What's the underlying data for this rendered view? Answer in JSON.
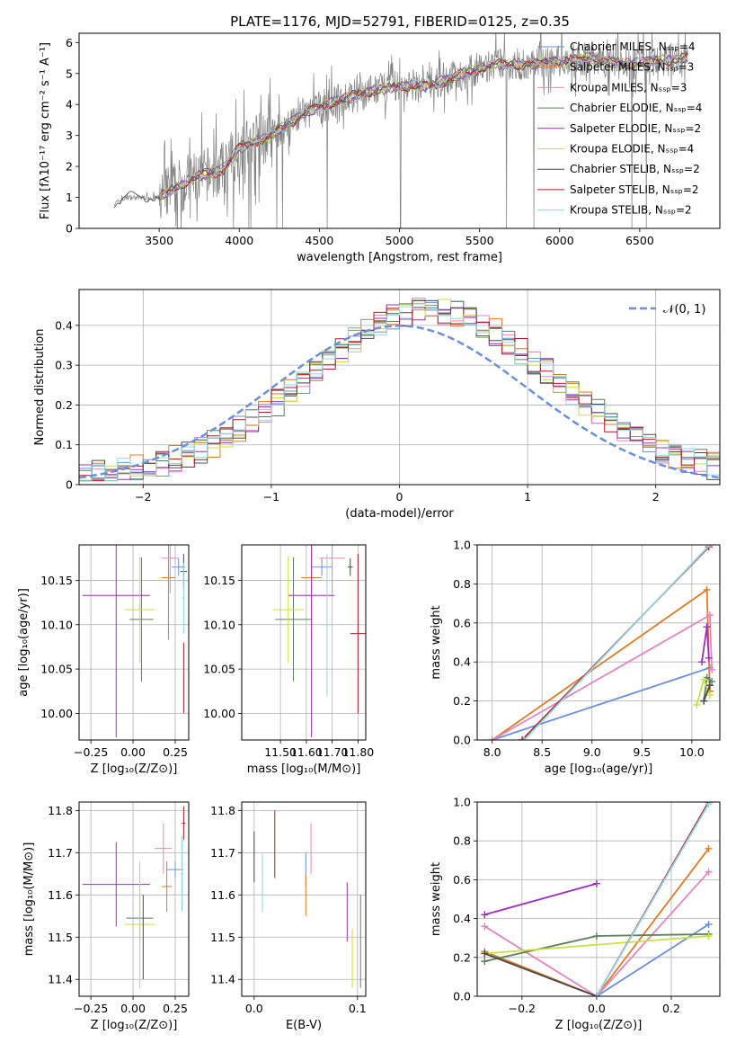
{
  "figure_title": "PLATE=1176, MJD=52791, FIBERID=0125, z=0.35",
  "palette": [
    "#6a8fdb",
    "#e07b24",
    "#e784c0",
    "#5c7f60",
    "#9b2fb5",
    "#c8e040",
    "#4b4b4b",
    "#b01c24",
    "#8fd6e0"
  ],
  "chart_data": [
    {
      "id": "spectrum",
      "type": "line",
      "xlabel": "wavelength [Angstrom, rest frame]",
      "ylabel": "Flux [fλ10⁻¹⁷ erg cm⁻² s⁻¹ A⁻¹]",
      "xlim": [
        3000,
        7000
      ],
      "ylim": [
        0,
        6.3
      ],
      "xticks": [
        3500,
        4000,
        4500,
        5000,
        5500,
        6000,
        6500
      ],
      "yticks": [
        0,
        1,
        2,
        3,
        4,
        5,
        6
      ],
      "legend_position": "top-right",
      "data_line": {
        "color": "#808080",
        "x": [
          3220,
          3300,
          3500,
          3700,
          3900,
          4000,
          4200,
          4400,
          4600,
          4800,
          5000,
          5200,
          5400,
          5600,
          5800,
          6000,
          6200,
          6400,
          6600,
          6800
        ],
        "y": [
          0.8,
          1.0,
          1.0,
          1.6,
          1.9,
          2.6,
          3.0,
          3.7,
          4.1,
          4.4,
          4.6,
          4.6,
          5.0,
          5.3,
          5.3,
          5.4,
          5.5,
          5.3,
          5.4,
          5.5
        ]
      },
      "series": [
        {
          "name": "Chabrier MILES, Nₛₛₚ=4"
        },
        {
          "name": "Salpeter MILES, Nₛₛₚ=3"
        },
        {
          "name": "Kroupa MILES, Nₛₛₚ=3"
        },
        {
          "name": "Chabrier ELODIE, Nₛₛₚ=4"
        },
        {
          "name": "Salpeter ELODIE, Nₛₛₚ=2"
        },
        {
          "name": "Kroupa ELODIE, Nₛₛₚ=4"
        },
        {
          "name": "Chabrier STELIB, Nₛₛₚ=2"
        },
        {
          "name": "Salpeter STELIB, Nₛₛₚ=2"
        },
        {
          "name": "Kroupa STELIB, Nₛₛₚ=2"
        }
      ]
    },
    {
      "id": "residuals",
      "type": "histogram",
      "xlabel": "(data-model)/error",
      "ylabel": "Normed distribution",
      "xlim": [
        -2.5,
        2.5
      ],
      "ylim": [
        0,
        0.49
      ],
      "xticks": [
        -2,
        -1,
        0,
        1,
        2
      ],
      "yticks": [
        0.0,
        0.1,
        0.2,
        0.3,
        0.4
      ],
      "grid": true,
      "legend_position": "top-right",
      "reference_label": "𝒩(0, 1)",
      "reference_mean": 0,
      "reference_sd": 1
    },
    {
      "id": "age_vs_Z",
      "type": "errorbar",
      "xlabel": "Z [log₁₀(Z/Z⊙)]",
      "ylabel": "age  [log₁₀(age/yr)]",
      "xlim": [
        -0.32,
        0.33
      ],
      "ylim": [
        9.97,
        10.19
      ],
      "xticks": [
        "-0.25",
        "0.00",
        "0.25"
      ],
      "yticks": [
        "10.00",
        "10.05",
        "10.10",
        "10.15"
      ],
      "grid": true,
      "points": [
        {
          "x": 0.27,
          "y": 10.165,
          "xerr": 0.04,
          "yerr": 0.01
        },
        {
          "x": 0.21,
          "y": 10.153,
          "xerr": 0.04,
          "yerr": 0.07
        },
        {
          "x": 0.22,
          "y": 10.175,
          "xerr": 0.05,
          "yerr": 0.04
        },
        {
          "x": 0.05,
          "y": 10.106,
          "xerr": 0.07,
          "yerr": 0.07
        },
        {
          "x": -0.1,
          "y": 10.133,
          "xerr": 0.2,
          "yerr": 0.16
        },
        {
          "x": 0.04,
          "y": 10.117,
          "xerr": 0.09,
          "yerr": 0.06
        },
        {
          "x": 0.3,
          "y": 10.16,
          "xerr": 0.02,
          "yerr": 0.02
        },
        {
          "x": 0.3,
          "y": 10.04,
          "xerr": 0.0,
          "yerr": 0.04
        },
        {
          "x": 0.3,
          "y": 10.13,
          "xerr": 0.01,
          "yerr": 0.04
        }
      ]
    },
    {
      "id": "age_vs_mass",
      "type": "errorbar",
      "xlabel": "mass [log₁₀(M/M⊙)]",
      "xlim": [
        11.35,
        11.83
      ],
      "ylim": [
        9.97,
        10.19
      ],
      "xticks": [
        "11.50",
        "11.60",
        "11.70",
        "11.80"
      ],
      "yticks": [
        "10.00",
        "10.05",
        "10.10",
        "10.15"
      ],
      "grid": true,
      "points": [
        {
          "x": 11.66,
          "y": 10.165,
          "xerr": 0.04,
          "yerr": 0.01
        },
        {
          "x": 11.62,
          "y": 10.153,
          "xerr": 0.04,
          "yerr": 0.07
        },
        {
          "x": 11.7,
          "y": 10.175,
          "xerr": 0.05,
          "yerr": 0.04
        },
        {
          "x": 11.55,
          "y": 10.106,
          "xerr": 0.07,
          "yerr": 0.07
        },
        {
          "x": 11.62,
          "y": 10.133,
          "xerr": 0.09,
          "yerr": 0.16
        },
        {
          "x": 11.53,
          "y": 10.117,
          "xerr": 0.06,
          "yerr": 0.06
        },
        {
          "x": 11.77,
          "y": 10.165,
          "xerr": 0.01,
          "yerr": 0.01
        },
        {
          "x": 11.8,
          "y": 10.09,
          "xerr": 0.03,
          "yerr": 0.09
        },
        {
          "x": 11.68,
          "y": 10.1,
          "xerr": 0.02,
          "yerr": 0.08
        }
      ]
    },
    {
      "id": "weight_vs_age",
      "type": "line",
      "xlabel": "age  [log₁₀(age/yr)]",
      "ylabel": "mass weight",
      "xlim": [
        7.85,
        10.28
      ],
      "ylim": [
        0,
        1.0
      ],
      "xticks": [
        "8.0",
        "8.5",
        "9.0",
        "9.5",
        "10.0"
      ],
      "yticks": [
        "0.0",
        "0.2",
        "0.4",
        "0.6",
        "0.8",
        "1.0"
      ],
      "grid": true,
      "series": [
        {
          "x": [
            8.0,
            10.18
          ],
          "y": [
            0.0,
            0.37
          ]
        },
        {
          "x": [
            8.0,
            10.15,
            10.18
          ],
          "y": [
            0.0,
            0.77,
            0.25
          ]
        },
        {
          "x": [
            8.0,
            10.18,
            10.2
          ],
          "y": [
            0.0,
            0.64,
            0.36
          ]
        },
        {
          "x": [
            10.12,
            10.15,
            10.2
          ],
          "y": [
            0.2,
            0.32,
            0.3
          ]
        },
        {
          "x": [
            10.1,
            10.15,
            10.17
          ],
          "y": [
            0.4,
            0.58,
            0.42
          ]
        },
        {
          "x": [
            10.05,
            10.12,
            10.18
          ],
          "y": [
            0.18,
            0.31,
            0.23
          ]
        },
        {
          "x": [
            10.12,
            10.18
          ],
          "y": [
            0.2,
            0.28
          ]
        },
        {
          "x": [
            8.3,
            10.17
          ],
          "y": [
            0.0,
            0.99
          ]
        },
        {
          "x": [
            8.32,
            10.18
          ],
          "y": [
            0.0,
            1.0
          ]
        }
      ]
    },
    {
      "id": "mass_vs_Z",
      "type": "errorbar",
      "xlabel": "Z [log₁₀(Z/Z⊙)]",
      "ylabel": "mass [log₁₀(M/M⊙)]",
      "xlim": [
        -0.32,
        0.33
      ],
      "ylim": [
        11.36,
        11.82
      ],
      "xticks": [
        "-0.25",
        "0.00",
        "0.25"
      ],
      "yticks": [
        "11.4",
        "11.5",
        "11.6",
        "11.7",
        "11.8"
      ],
      "grid": true,
      "points": [
        {
          "x": 0.25,
          "y": 11.66,
          "xerr": 0.05,
          "yerr": 0.02
        },
        {
          "x": 0.2,
          "y": 11.62,
          "xerr": 0.03,
          "yerr": 0.06
        },
        {
          "x": 0.18,
          "y": 11.71,
          "xerr": 0.05,
          "yerr": 0.06
        },
        {
          "x": 0.04,
          "y": 11.545,
          "xerr": 0.08,
          "yerr": 0.06
        },
        {
          "x": -0.1,
          "y": 11.625,
          "xerr": 0.2,
          "yerr": 0.1
        },
        {
          "x": 0.04,
          "y": 11.53,
          "xerr": 0.09,
          "yerr": 0.15
        },
        {
          "x": 0.06,
          "y": 11.5,
          "xerr": 0.0,
          "yerr": 0.1
        },
        {
          "x": 0.3,
          "y": 11.77,
          "xerr": 0.01,
          "yerr": 0.04
        },
        {
          "x": 0.29,
          "y": 11.65,
          "xerr": 0.01,
          "yerr": 0.09
        }
      ]
    },
    {
      "id": "mass_vs_EBV",
      "type": "errorbar",
      "xlabel": "E(B-V)",
      "xlim": [
        -0.012,
        0.108
      ],
      "ylim": [
        11.36,
        11.82
      ],
      "xticks": [
        "0.0",
        "0.1"
      ],
      "yticks": [
        "11.4",
        "11.5",
        "11.6",
        "11.7",
        "11.8"
      ],
      "grid": true,
      "points": [
        {
          "x": 0.05,
          "y": 11.66,
          "xerr": 0,
          "yerr": 0.04
        },
        {
          "x": 0.05,
          "y": 11.6,
          "xerr": 0,
          "yerr": 0.05
        },
        {
          "x": 0.055,
          "y": 11.71,
          "xerr": 0,
          "yerr": 0.06
        },
        {
          "x": 0.103,
          "y": 11.49,
          "xerr": 0,
          "yerr": 0.11
        },
        {
          "x": 0.09,
          "y": 11.56,
          "xerr": 0,
          "yerr": 0.07
        },
        {
          "x": 0.095,
          "y": 11.45,
          "xerr": 0,
          "yerr": 0.07
        },
        {
          "x": 0.0,
          "y": 11.69,
          "xerr": 0,
          "yerr": 0.06
        },
        {
          "x": 0.02,
          "y": 11.72,
          "xerr": 0,
          "yerr": 0.08
        },
        {
          "x": 0.008,
          "y": 11.63,
          "xerr": 0,
          "yerr": 0.07
        }
      ]
    },
    {
      "id": "weight_vs_Z",
      "type": "line",
      "xlabel": "Z [log₁₀(Z/Z⊙)]",
      "ylabel": "mass weight",
      "xlim": [
        -0.32,
        0.33
      ],
      "ylim": [
        0,
        1.0
      ],
      "xticks": [
        "-0.2",
        "0.0",
        "0.2"
      ],
      "yticks": [
        "0.0",
        "0.2",
        "0.4",
        "0.6",
        "0.8",
        "1.0"
      ],
      "grid": true,
      "series": [
        {
          "x": [
            0.0,
            0.3
          ],
          "y": [
            0.0,
            0.37
          ]
        },
        {
          "x": [
            -0.3,
            0.0,
            0.3
          ],
          "y": [
            0.23,
            0.0,
            0.76
          ]
        },
        {
          "x": [
            -0.3,
            0.0,
            0.3
          ],
          "y": [
            0.36,
            0.0,
            0.64
          ]
        },
        {
          "x": [
            -0.3,
            0.0,
            0.3
          ],
          "y": [
            0.18,
            0.31,
            0.32
          ]
        },
        {
          "x": [
            -0.3,
            0.0
          ],
          "y": [
            0.42,
            0.58
          ]
        },
        {
          "x": [
            -0.3,
            0.3
          ],
          "y": [
            0.22,
            0.31
          ]
        },
        {
          "x": [
            -0.3,
            0.0
          ],
          "y": [
            0.22,
            0.0
          ]
        },
        {
          "x": [
            0.0,
            0.3
          ],
          "y": [
            0.0,
            1.0
          ]
        },
        {
          "x": [
            0.0,
            0.3
          ],
          "y": [
            0.0,
            0.99
          ]
        }
      ]
    }
  ]
}
